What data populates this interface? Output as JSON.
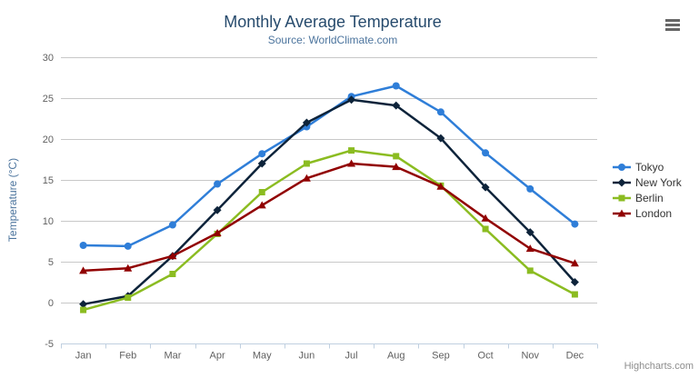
{
  "title": "Monthly Average Temperature",
  "subtitle": "Source: WorldClimate.com",
  "credits": "Highcharts.com",
  "colors": {
    "title": "#274b6d",
    "subtitle": "#4d759e",
    "axis_title": "#4d759e",
    "tick_label": "#606060",
    "grid_line": "#c8c8c8",
    "axis_line": "#c0d0e0",
    "legend_text": "#333333",
    "credits_text": "#8d8d8d",
    "menu_icon": "#666666"
  },
  "chart_data": {
    "type": "line",
    "title": "Monthly Average Temperature",
    "subtitle": "Source: WorldClimate.com",
    "categories": [
      "Jan",
      "Feb",
      "Mar",
      "Apr",
      "May",
      "Jun",
      "Jul",
      "Aug",
      "Sep",
      "Oct",
      "Nov",
      "Dec"
    ],
    "series": [
      {
        "name": "Tokyo",
        "color": "#2f7ed8",
        "marker": "circle",
        "values": [
          7.0,
          6.9,
          9.5,
          14.5,
          18.2,
          21.5,
          25.2,
          26.5,
          23.3,
          18.3,
          13.9,
          9.6
        ]
      },
      {
        "name": "New York",
        "color": "#0d233a",
        "marker": "diamond",
        "values": [
          -0.2,
          0.8,
          5.7,
          11.3,
          17.0,
          22.0,
          24.8,
          24.1,
          20.1,
          14.1,
          8.6,
          2.5
        ]
      },
      {
        "name": "Berlin",
        "color": "#8bbc21",
        "marker": "square",
        "values": [
          -0.9,
          0.6,
          3.5,
          8.4,
          13.5,
          17.0,
          18.6,
          17.9,
          14.3,
          9.0,
          3.9,
          1.0
        ]
      },
      {
        "name": "London",
        "color": "#910000",
        "marker": "triangle",
        "values": [
          3.9,
          4.2,
          5.7,
          8.5,
          11.9,
          15.2,
          17.0,
          16.6,
          14.2,
          10.3,
          6.6,
          4.8
        ]
      }
    ],
    "xlabel": "",
    "ylabel": "Temperature (°C)",
    "ylim": [
      -5,
      30
    ],
    "y_ticks": [
      -5,
      0,
      5,
      10,
      15,
      20,
      25,
      30
    ],
    "grid": true,
    "legend_position": "right"
  }
}
